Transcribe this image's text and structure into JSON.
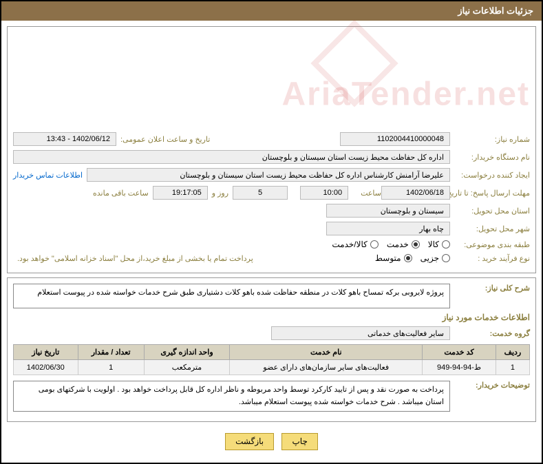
{
  "header": {
    "title": "جزئیات اطلاعات نیاز"
  },
  "need": {
    "number_label": "شماره نیاز:",
    "number": "1102004410000048",
    "announce_label": "تاریخ و ساعت اعلان عمومی:",
    "announce_value": "1402/06/12 - 13:43",
    "buyer_org_label": "نام دستگاه خریدار:",
    "buyer_org": "اداره کل حفاظت محیط زیست استان سیستان و بلوچستان",
    "requester_label": "ایجاد کننده درخواست:",
    "requester": "علیرضا آرامنش کارشناس اداره کل حفاظت محیط زیست استان سیستان و بلوچستان",
    "contact_link": "اطلاعات تماس خریدار",
    "deadline_label": "مهلت ارسال پاسخ: تا تاریخ:",
    "deadline_date": "1402/06/18",
    "time_label": "ساعت",
    "deadline_time": "10:00",
    "days_remaining": "5",
    "days_label": "روز و",
    "hours_remaining": "19:17:05",
    "remaining_label": "ساعت باقی مانده",
    "province_label": "استان محل تحویل:",
    "province": "سیستان و بلوچستان",
    "city_label": "شهر محل تحویل:",
    "city": "چاه بهار",
    "category_label": "طبقه بندی موضوعی:",
    "cat_goods": "کالا",
    "cat_service": "خدمت",
    "cat_both": "کالا/خدمت",
    "process_label": "نوع فرآیند خرید :",
    "proc_partial": "جزیی",
    "proc_medium": "متوسط",
    "payment_note": "پرداخت تمام یا بخشی از مبلغ خرید،از محل \"اسناد خزانه اسلامی\" خواهد بود."
  },
  "summary": {
    "label": "شرح کلی نیاز:",
    "text": "پروژه لایروبی برکه تمساح باهو کلات در منطقه حفاظت شده باهو کلات دشتیاری طبق شرح خدمات خواسته شده در پیوست استعلام"
  },
  "services": {
    "section_title": "اطلاعات خدمات مورد نیاز",
    "group_label": "گروه خدمت:",
    "group_value": "سایر فعالیت‌های خدماتی",
    "columns": [
      "ردیف",
      "کد خدمت",
      "نام خدمت",
      "واحد اندازه گیری",
      "تعداد / مقدار",
      "تاریخ نیاز"
    ],
    "rows": [
      [
        "1",
        "ط-94-94-949",
        "فعالیت‌های سایر سازمان‌های دارای عضو",
        "مترمکعب",
        "1",
        "1402/06/30"
      ]
    ]
  },
  "buyer_notes": {
    "label": "توضیحات خریدار:",
    "text": "پرداخت به صورت نقد و پس از تایید کارکرد توسط واحد مربوطه و ناظر اداره کل قابل پرداخت خواهد بود . اولویت با شرکتهای بومی استان میباشد . شرح خدمات خواسته شده پیوست استعلام میباشد."
  },
  "buttons": {
    "print": "چاپ",
    "back": "بازگشت"
  },
  "watermark": "AriaTender.net"
}
